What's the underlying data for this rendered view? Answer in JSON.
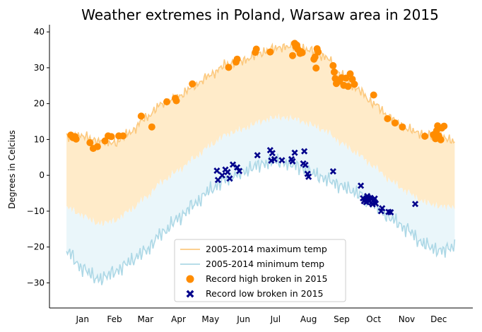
{
  "chart_data": {
    "type": "line",
    "title": "Weather extremes in Poland, Warsaw area in 2015",
    "xlabel": "",
    "ylabel": "Degrees in Celcius",
    "x_tick_labels": [
      "Jan",
      "Feb",
      "Mar",
      "Apr",
      "May",
      "Jun",
      "Jul",
      "Aug",
      "Sep",
      "Oct",
      "Nov",
      "Dec"
    ],
    "x_tick_days": [
      15,
      45,
      74,
      105,
      135,
      166,
      196,
      227,
      258,
      288,
      319,
      349
    ],
    "ylim": [
      -37,
      42
    ],
    "xlim": [
      -16,
      381
    ],
    "y_ticks": [
      -30,
      -20,
      -10,
      0,
      10,
      20,
      30,
      40
    ],
    "grid": false,
    "legend_position": "lower-center",
    "colors": {
      "max_line": "#fcc97f",
      "max_fill": "#ffebc9",
      "min_line": "#add8e6",
      "min_fill": "#eaf6fa",
      "record_high": "#ff8c00",
      "record_low": "#00008b"
    },
    "series": [
      {
        "name": "2005-2014 maximum temp",
        "kind": "line",
        "color": "#fcc97f",
        "x_days": [
          0,
          15,
          30,
          45,
          60,
          74,
          90,
          105,
          120,
          135,
          150,
          166,
          181,
          196,
          212,
          227,
          243,
          258,
          273,
          288,
          304,
          319,
          334,
          349,
          364
        ],
        "values": [
          10.5,
          11,
          9.5,
          9,
          12,
          16,
          20,
          22,
          25,
          28,
          31,
          32,
          34,
          35.5,
          36,
          35,
          33,
          28,
          24,
          20,
          16,
          13,
          11.5,
          11,
          9.5
        ]
      },
      {
        "name": "2005-2014 minimum temp",
        "kind": "line",
        "color": "#add8e6",
        "x_days": [
          0,
          15,
          30,
          45,
          60,
          74,
          90,
          105,
          120,
          135,
          150,
          166,
          181,
          196,
          212,
          227,
          243,
          258,
          273,
          288,
          304,
          319,
          334,
          349,
          364
        ],
        "values": [
          -21,
          -26,
          -29,
          -27,
          -24,
          -21,
          -16,
          -12,
          -8,
          -4,
          -1,
          1,
          3,
          4,
          3,
          1,
          -1,
          -3,
          -5,
          -8,
          -12,
          -15,
          -19,
          -21,
          -20
        ]
      },
      {
        "name": "Record high broken in 2015",
        "kind": "scatter",
        "color": "#ff8c00",
        "x_days": [
          4,
          6,
          8,
          9,
          22,
          25,
          29,
          36,
          39,
          42,
          49,
          53,
          70,
          80,
          94,
          102,
          103,
          118,
          152,
          159,
          160,
          177,
          178,
          191,
          212,
          214,
          215,
          216,
          217,
          219,
          220,
          221,
          232,
          233,
          234,
          235,
          236,
          250,
          251,
          252,
          253,
          256,
          258,
          260,
          262,
          264,
          266,
          268,
          270,
          288,
          301,
          308,
          315,
          336,
          344,
          346,
          347,
          348,
          349,
          351,
          352,
          354
        ],
        "values": [
          11.2,
          10.5,
          10.8,
          10.1,
          9.1,
          7.5,
          8,
          9.6,
          11,
          10.8,
          11,
          11,
          16.5,
          13.5,
          20.5,
          21.5,
          20.8,
          25.5,
          30.1,
          31.6,
          32.4,
          34.3,
          35.2,
          34.4,
          33.4,
          36.8,
          35.9,
          36.3,
          35.1,
          34,
          34.5,
          34.2,
          32.4,
          33,
          29.9,
          35.3,
          34.4,
          30.6,
          28.8,
          27,
          25.6,
          26.3,
          27.2,
          25.1,
          27.1,
          24.8,
          28.3,
          26.8,
          25.4,
          22.4,
          15.8,
          14.6,
          13.5,
          10.9,
          11.3,
          10.2,
          12.4,
          13.8,
          11,
          9.9,
          13.2,
          13.7
        ]
      },
      {
        "name": "Record low broken in 2015",
        "kind": "scatter",
        "color": "#00008b",
        "x_days": [
          141,
          142,
          146,
          149,
          151,
          153,
          156,
          160,
          162,
          179,
          191,
          192,
          193,
          195,
          202,
          211,
          212,
          214,
          222,
          223,
          224,
          226,
          227,
          250,
          276,
          278,
          279,
          280,
          281,
          282,
          283,
          284,
          285,
          286,
          287,
          288,
          289,
          290,
          295,
          296,
          302,
          304,
          327
        ],
        "values": [
          1.3,
          -1.3,
          0,
          1.6,
          0.9,
          -0.9,
          3,
          2.2,
          1.2,
          5.6,
          7,
          4.1,
          6.2,
          4.5,
          4.2,
          4.5,
          3.9,
          6.3,
          3.3,
          6.7,
          2.9,
          0.4,
          -0.4,
          1.1,
          -2.9,
          -6.4,
          -7.2,
          -6.8,
          -7.5,
          -5.8,
          -6.3,
          -7.2,
          -6.3,
          -7.6,
          -8.1,
          -6.9,
          -6.5,
          -7.9,
          -10,
          -9.2,
          -10.2,
          -10.3,
          -8
        ]
      }
    ]
  }
}
